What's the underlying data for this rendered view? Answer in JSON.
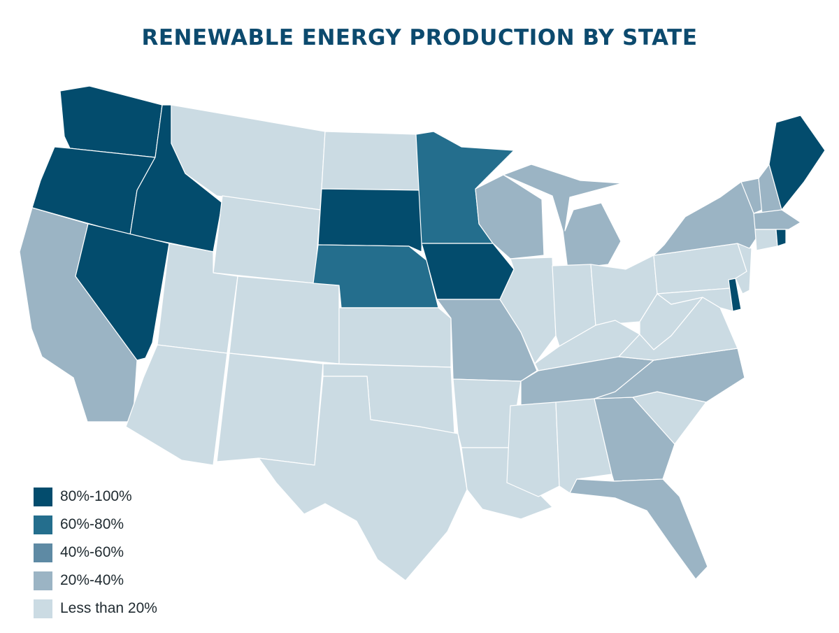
{
  "title": "RENEWABLE ENERGY PRODUCTION BY STATE",
  "colors": {
    "c80_100": "#034c6d",
    "c60_80": "#246e8d",
    "c40_60": "#5e8aa4",
    "c20_40": "#9bb4c4",
    "lt20": "#cbdbe3"
  },
  "legend": [
    {
      "label": "80%-100%",
      "key": "c80_100"
    },
    {
      "label": "60%-80%",
      "key": "c60_80"
    },
    {
      "label": "40%-60%",
      "key": "c40_60"
    },
    {
      "label": "20%-40%",
      "key": "c20_40"
    },
    {
      "label": "Less than 20%",
      "key": "lt20"
    }
  ],
  "states": {
    "WA": "c80_100",
    "OR": "c80_100",
    "ID": "c80_100",
    "NV": "c80_100",
    "SD": "c80_100",
    "IA": "c80_100",
    "ME": "c80_100",
    "DE": "c80_100",
    "RI": "c80_100",
    "MN": "c60_80",
    "NE": "c60_80",
    "CA": "c20_40",
    "WI": "c20_40",
    "MI": "c20_40",
    "MO": "c20_40",
    "TN": "c20_40",
    "NC": "c20_40",
    "GA": "c20_40",
    "FL": "c20_40",
    "NY": "c20_40",
    "VT": "c20_40",
    "NH": "c20_40",
    "MA": "c20_40",
    "MT": "lt20",
    "ND": "lt20",
    "WY": "lt20",
    "UT": "lt20",
    "CO": "lt20",
    "AZ": "lt20",
    "NM": "lt20",
    "TX": "lt20",
    "OK": "lt20",
    "KS": "lt20",
    "AR": "lt20",
    "LA": "lt20",
    "MS": "lt20",
    "AL": "lt20",
    "IL": "lt20",
    "IN": "lt20",
    "OH": "lt20",
    "KY": "lt20",
    "WV": "lt20",
    "VA": "lt20",
    "PA": "lt20",
    "NJ": "lt20",
    "MD": "lt20",
    "SC": "lt20",
    "CT": "lt20"
  }
}
